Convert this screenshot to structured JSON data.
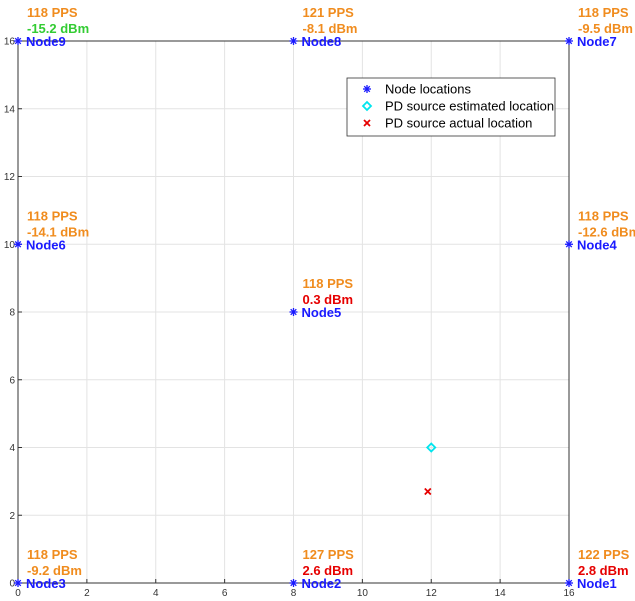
{
  "chart_data": {
    "type": "scatter",
    "xlim": [
      0,
      16
    ],
    "ylim": [
      0,
      16
    ],
    "x_ticks": [
      0,
      2,
      4,
      6,
      8,
      10,
      12,
      14,
      16
    ],
    "y_ticks": [
      0,
      2,
      4,
      6,
      8,
      10,
      12,
      14,
      16
    ],
    "grid": true,
    "legend_position": "top-right",
    "legend": [
      {
        "label": "Node locations",
        "marker": "asterisk",
        "color": "#1a1aff"
      },
      {
        "label": "PD source estimated location",
        "marker": "diamond",
        "color": "#00e5ee"
      },
      {
        "label": "PD source actual location",
        "marker": "x",
        "color": "#e60000"
      }
    ],
    "nodes": [
      {
        "name": "Node1",
        "x": 16,
        "y": 0,
        "pps": "122 PPS",
        "dbm": "2.8 dBm",
        "dbm_color": "#e60000"
      },
      {
        "name": "Node2",
        "x": 8,
        "y": 0,
        "pps": "127 PPS",
        "dbm": "2.6 dBm",
        "dbm_color": "#e60000"
      },
      {
        "name": "Node3",
        "x": 0,
        "y": 0,
        "pps": "118 PPS",
        "dbm": "-9.2 dBm",
        "dbm_color": "#f08c1e"
      },
      {
        "name": "Node4",
        "x": 16,
        "y": 10,
        "pps": "118 PPS",
        "dbm": "-12.6 dBm",
        "dbm_color": "#f08c1e"
      },
      {
        "name": "Node5",
        "x": 8,
        "y": 8,
        "pps": "118 PPS",
        "dbm": "0.3 dBm",
        "dbm_color": "#e60000"
      },
      {
        "name": "Node6",
        "x": 0,
        "y": 10,
        "pps": "118 PPS",
        "dbm": "-14.1 dBm",
        "dbm_color": "#f08c1e"
      },
      {
        "name": "Node7",
        "x": 16,
        "y": 16,
        "pps": "118 PPS",
        "dbm": "-9.5 dBm",
        "dbm_color": "#f08c1e"
      },
      {
        "name": "Node8",
        "x": 8,
        "y": 16,
        "pps": "121 PPS",
        "dbm": "-8.1 dBm",
        "dbm_color": "#f08c1e"
      },
      {
        "name": "Node9",
        "x": 0,
        "y": 16,
        "pps": "118 PPS",
        "dbm": "-15.2 dBm",
        "dbm_color": "#33cc33"
      }
    ],
    "pd_estimated": {
      "x": 12,
      "y": 4
    },
    "pd_actual": {
      "x": 11.9,
      "y": 2.7
    },
    "colors": {
      "node": "#1a1aff",
      "pps": "#f08c1e",
      "estimated": "#00e5ee",
      "actual": "#e60000",
      "grid": "#e3e3e3",
      "axis": "#333333"
    }
  }
}
